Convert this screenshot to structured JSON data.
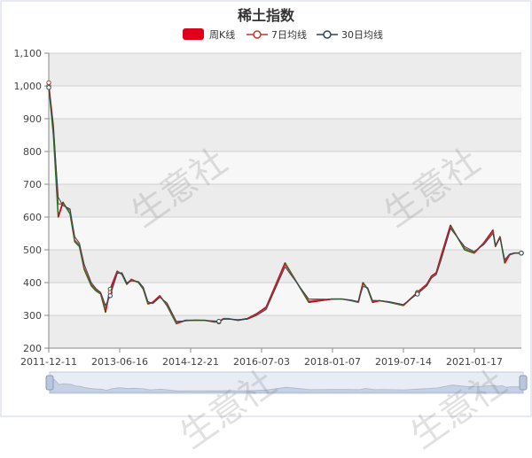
{
  "chart_data": {
    "type": "line",
    "title": "稀土指数",
    "legend": {
      "placement": "top-center",
      "items": [
        {
          "key": "k",
          "label": "周K线",
          "color": "#e0001b"
        },
        {
          "key": "ma7",
          "label": "7日均线",
          "color": "#c23531"
        },
        {
          "key": "ma30",
          "label": "30日均线",
          "color": "#2f4554"
        }
      ]
    },
    "x_tick_labels": [
      "2011-12-11",
      "2013-06-16",
      "2014-12-21",
      "2016-07-03",
      "2018-01-07",
      "2019-07-14",
      "2021-01-17"
    ],
    "y_tick_labels": [
      "200",
      "300",
      "400",
      "500",
      "600",
      "700",
      "800",
      "900",
      "1,000",
      "1,100"
    ],
    "ylim": [
      200,
      1100
    ],
    "grid": true,
    "zoom_slider": true,
    "watermark_text": "生意社",
    "series": [
      {
        "name": "周K线",
        "x": [
          0.0,
          0.01,
          0.02,
          0.03,
          0.045,
          0.055,
          0.065,
          0.075,
          0.09,
          0.1,
          0.11,
          0.12,
          0.13,
          0.145,
          0.155,
          0.165,
          0.175,
          0.19,
          0.2,
          0.21,
          0.22,
          0.235,
          0.25,
          0.27,
          0.29,
          0.31,
          0.33,
          0.35,
          0.36,
          0.37,
          0.38,
          0.4,
          0.42,
          0.44,
          0.46,
          0.5,
          0.55,
          0.6,
          0.62,
          0.64,
          0.655,
          0.665,
          0.675,
          0.685,
          0.7,
          0.72,
          0.75,
          0.78,
          0.8,
          0.81,
          0.82,
          0.83,
          0.85,
          0.88,
          0.9,
          0.92,
          0.94,
          0.945,
          0.955,
          0.965,
          0.975,
          0.985,
          1.0
        ],
        "values": [
          1000,
          850,
          600,
          645,
          610,
          525,
          510,
          440,
          390,
          375,
          365,
          310,
          380,
          435,
          425,
          395,
          410,
          400,
          380,
          335,
          340,
          360,
          330,
          275,
          285,
          285,
          285,
          280,
          280,
          290,
          290,
          285,
          290,
          305,
          325,
          460,
          340,
          350,
          350,
          345,
          340,
          400,
          380,
          340,
          345,
          340,
          330,
          370,
          395,
          420,
          430,
          480,
          575,
          500,
          490,
          520,
          560,
          510,
          540,
          460,
          485,
          490,
          490
        ]
      },
      {
        "name": "7日均线",
        "x": [
          0.0,
          0.01,
          0.02,
          0.03,
          0.045,
          0.055,
          0.065,
          0.075,
          0.09,
          0.1,
          0.11,
          0.12,
          0.13,
          0.145,
          0.155,
          0.165,
          0.175,
          0.19,
          0.2,
          0.21,
          0.22,
          0.235,
          0.25,
          0.27,
          0.29,
          0.31,
          0.33,
          0.35,
          0.36,
          0.37,
          0.38,
          0.4,
          0.42,
          0.44,
          0.46,
          0.5,
          0.55,
          0.6,
          0.62,
          0.64,
          0.655,
          0.665,
          0.675,
          0.685,
          0.7,
          0.72,
          0.75,
          0.78,
          0.8,
          0.81,
          0.82,
          0.83,
          0.85,
          0.88,
          0.9,
          0.92,
          0.94,
          0.945,
          0.955,
          0.965,
          0.975,
          0.985,
          1.0
        ],
        "values": [
          1010,
          880,
          640,
          640,
          620,
          530,
          515,
          445,
          395,
          378,
          367,
          320,
          370,
          432,
          428,
          398,
          408,
          402,
          383,
          338,
          338,
          358,
          333,
          278,
          284,
          285,
          285,
          281,
          281,
          289,
          289,
          286,
          289,
          303,
          322,
          455,
          345,
          350,
          350,
          346,
          341,
          395,
          382,
          343,
          345,
          341,
          331,
          368,
          393,
          418,
          428,
          475,
          570,
          505,
          492,
          518,
          556,
          512,
          538,
          465,
          486,
          490,
          490
        ]
      },
      {
        "name": "30日均线",
        "x": [
          0.0,
          0.01,
          0.02,
          0.03,
          0.045,
          0.055,
          0.065,
          0.075,
          0.09,
          0.1,
          0.11,
          0.12,
          0.13,
          0.145,
          0.155,
          0.165,
          0.175,
          0.19,
          0.2,
          0.21,
          0.22,
          0.235,
          0.25,
          0.27,
          0.29,
          0.31,
          0.33,
          0.35,
          0.36,
          0.37,
          0.38,
          0.4,
          0.42,
          0.44,
          0.46,
          0.5,
          0.55,
          0.6,
          0.62,
          0.64,
          0.655,
          0.665,
          0.675,
          0.685,
          0.7,
          0.72,
          0.75,
          0.78,
          0.8,
          0.81,
          0.82,
          0.83,
          0.85,
          0.88,
          0.9,
          0.92,
          0.94,
          0.945,
          0.955,
          0.965,
          0.975,
          0.985,
          1.0
        ],
        "values": [
          995,
          870,
          660,
          635,
          625,
          540,
          520,
          455,
          400,
          382,
          370,
          330,
          360,
          428,
          430,
          400,
          405,
          403,
          386,
          342,
          336,
          355,
          338,
          282,
          283,
          286,
          285,
          283,
          282,
          288,
          288,
          287,
          288,
          300,
          318,
          448,
          350,
          349,
          350,
          347,
          342,
          388,
          384,
          346,
          345,
          342,
          333,
          365,
          390,
          414,
          425,
          468,
          565,
          510,
          495,
          515,
          550,
          515,
          535,
          470,
          487,
          490,
          490
        ]
      }
    ]
  }
}
